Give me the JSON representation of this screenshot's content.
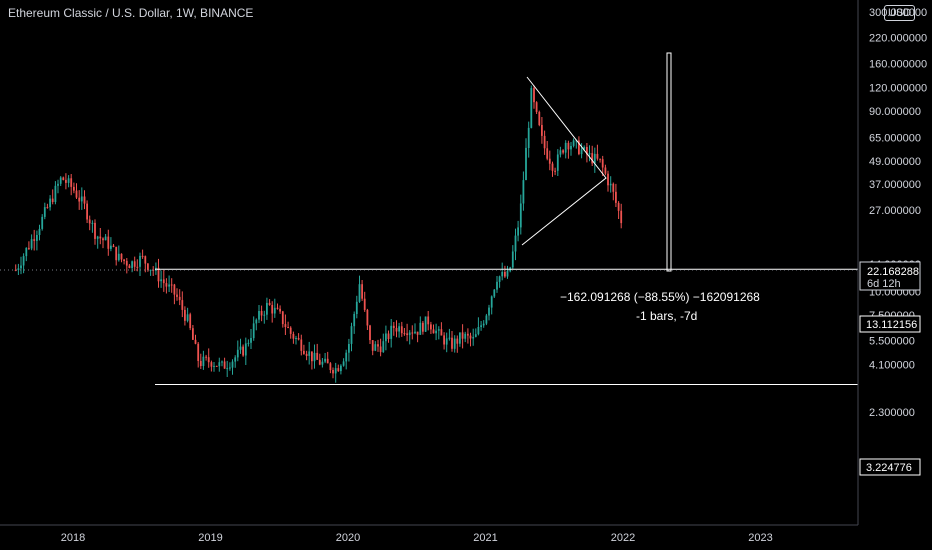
{
  "header": {
    "title": "Ethereum Classic / U.S. Dollar, 1W, BINANCE",
    "currency": "USD"
  },
  "price_axis": {
    "ticks": [
      "300.000000",
      "220.000000",
      "160.000000",
      "120.000000",
      "90.000000",
      "65.000000",
      "49.000000",
      "37.000000",
      "27.000000",
      "14.000000",
      "10.000000",
      "7.500000",
      "5.500000",
      "4.100000",
      "2.300000"
    ]
  },
  "time_axis": {
    "labels": [
      "2018",
      "2019",
      "2020",
      "2021",
      "2022",
      "2023"
    ]
  },
  "badges": {
    "last_price": "22.168288",
    "countdown": "6d 12h",
    "resistance": "13.112156",
    "support": "3.224776"
  },
  "measure": {
    "line1": "−162.091268 (−88.55%) −162091268",
    "line2": "-1 bars, -7d"
  },
  "colors": {
    "up": "#26a69a",
    "down": "#ef5350",
    "background": "#000000",
    "drawing": "#ffffff"
  },
  "chart_data": {
    "type": "candlestick",
    "title": "Ethereum Classic / U.S. Dollar, 1W, BINANCE",
    "scale": "log",
    "ylim": [
      2.0,
      300
    ],
    "xlim": [
      "2017-08",
      "2023-09"
    ],
    "y_ticks": [
      300,
      220,
      160,
      120,
      90,
      65,
      49,
      37,
      27,
      14,
      10,
      7.5,
      5.5,
      4.1,
      2.3
    ],
    "x_ticks": [
      "2018",
      "2019",
      "2020",
      "2021",
      "2022",
      "2023"
    ],
    "trend_path": [
      [
        "2017-08",
        13
      ],
      [
        "2017-10",
        22
      ],
      [
        "2017-12",
        40
      ],
      [
        "2018-01",
        35
      ],
      [
        "2018-02",
        28
      ],
      [
        "2018-03",
        20
      ],
      [
        "2018-04",
        18
      ],
      [
        "2018-05",
        15
      ],
      [
        "2018-06",
        14
      ],
      [
        "2018-07",
        15
      ],
      [
        "2018-08",
        13
      ],
      [
        "2018-09",
        11
      ],
      [
        "2018-10",
        9.5
      ],
      [
        "2018-11",
        7
      ],
      [
        "2018-12",
        4.2
      ],
      [
        "2019-01",
        4.3
      ],
      [
        "2019-02",
        4.0
      ],
      [
        "2019-03",
        4.4
      ],
      [
        "2019-04",
        5.0
      ],
      [
        "2019-05",
        7
      ],
      [
        "2019-06",
        8.5
      ],
      [
        "2019-07",
        7.5
      ],
      [
        "2019-08",
        6
      ],
      [
        "2019-09",
        5.2
      ],
      [
        "2019-10",
        4.4
      ],
      [
        "2019-11",
        4.1
      ],
      [
        "2019-12",
        3.9
      ],
      [
        "2020-01",
        5
      ],
      [
        "2020-02",
        11
      ],
      [
        "2020-03",
        5
      ],
      [
        "2020-04",
        5.2
      ],
      [
        "2020-05",
        6.5
      ],
      [
        "2020-06",
        6.4
      ],
      [
        "2020-07",
        6.2
      ],
      [
        "2020-08",
        7
      ],
      [
        "2020-09",
        5.8
      ],
      [
        "2020-10",
        5.2
      ],
      [
        "2020-11",
        5.8
      ],
      [
        "2020-12",
        5.5
      ],
      [
        "2021-01",
        7.5
      ],
      [
        "2021-02",
        12
      ],
      [
        "2021-03",
        12
      ],
      [
        "2021-04",
        25
      ],
      [
        "2021-05",
        110
      ],
      [
        "2021-06",
        60
      ],
      [
        "2021-07",
        45
      ],
      [
        "2021-08",
        62
      ],
      [
        "2021-09",
        58
      ],
      [
        "2021-10",
        52
      ],
      [
        "2021-11",
        48
      ],
      [
        "2021-12",
        35
      ],
      [
        "2022-01",
        22.17
      ]
    ],
    "horizontal_levels": [
      13.112156,
      3.224776
    ],
    "last_price": 22.168288,
    "measure_change": -162.091268,
    "measure_change_pct": -88.55
  }
}
